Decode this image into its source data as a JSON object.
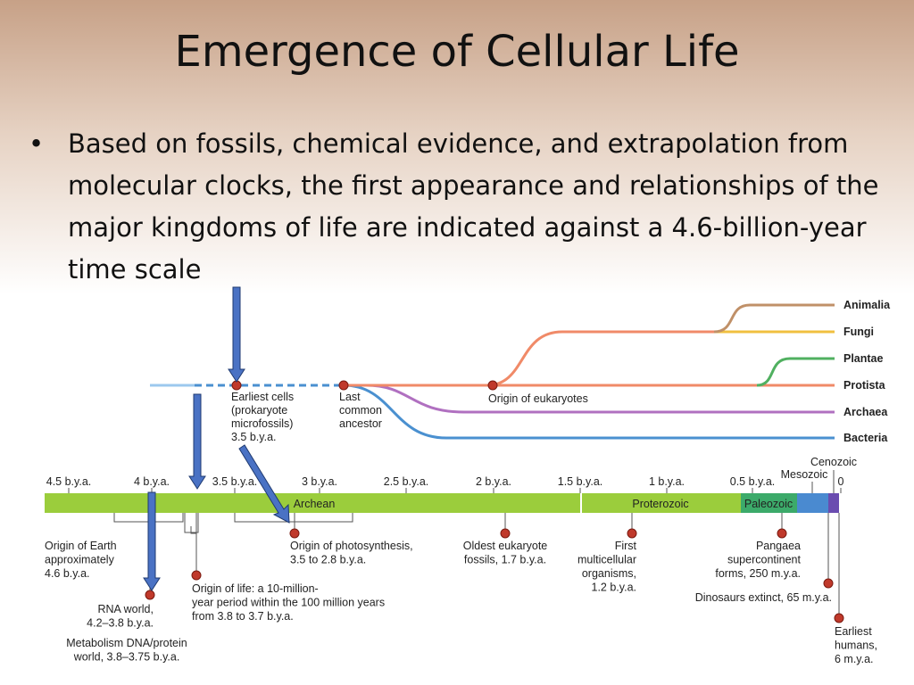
{
  "title": "Emergence of Cellular Life",
  "bullet": "Based on fossils, chemical evidence, and extrapolation from molecular clocks, the first appearance and relationships of the major kingdoms of life are indicated against a 4.6-billion-year time scale",
  "tree": {
    "lineages": [
      "Animalia",
      "Fungi",
      "Plantae",
      "Protista",
      "Archaea",
      "Bacteria"
    ],
    "events": [
      {
        "lines": [
          "Earliest cells",
          "(prokaryote",
          "microfossils)",
          "3.5 b.y.a."
        ]
      },
      {
        "lines": [
          "Last",
          "common",
          "ancestor"
        ]
      },
      {
        "lines": [
          "Origin of eukaryotes"
        ]
      }
    ]
  },
  "timeline": {
    "ticks": [
      "4.5 b.y.a.",
      "4 b.y.a.",
      "3.5 b.y.a.",
      "3 b.y.a.",
      "2.5 b.y.a.",
      "2 b.y.a.",
      "1.5 b.y.a.",
      "1 b.y.a.",
      "0.5 b.y.a.",
      "0"
    ],
    "eras": [
      "Archean",
      "Proterozoic",
      "Paleozoic",
      "Mesozoic",
      "Cenozoic"
    ],
    "events": [
      {
        "lines": [
          "Origin of Earth",
          "approximately",
          "4.6 b.y.a."
        ]
      },
      {
        "lines": [
          "RNA world,",
          "4.2–3.8 b.y.a."
        ]
      },
      {
        "lines": [
          "Metabolism DNA/protein",
          "world, 3.8–3.75 b.y.a."
        ]
      },
      {
        "lines": [
          "Origin of life: a 10-million-",
          "year period within the 100 million years",
          "from 3.8 to 3.7 b.y.a."
        ]
      },
      {
        "lines": [
          "Origin of photosynthesis,",
          "3.5 to 2.8 b.y.a."
        ]
      },
      {
        "lines": [
          "Oldest eukaryote",
          "fossils, 1.7 b.y.a."
        ]
      },
      {
        "lines": [
          "First",
          "multicellular",
          "organisms,",
          "1.2 b.y.a."
        ]
      },
      {
        "lines": [
          "Pangaea",
          "supercontinent",
          "forms, 250 m.y.a."
        ]
      },
      {
        "lines": [
          "Dinosaurs extinct, 65 m.y.a."
        ]
      },
      {
        "lines": [
          "Earliest",
          "humans,",
          "6 m.y.a."
        ]
      }
    ]
  }
}
